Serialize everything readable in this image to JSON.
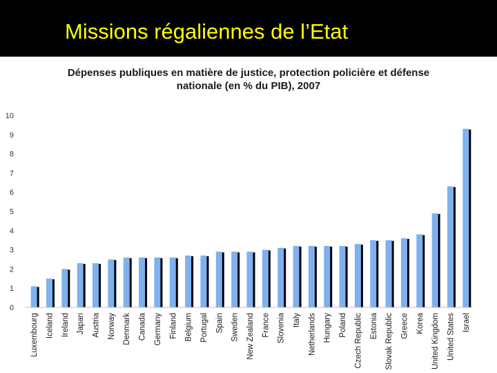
{
  "slide": {
    "title": "Missions régaliennes de l’Etat"
  },
  "colors": {
    "title_bar": "#000000",
    "title_text": "#ffff00",
    "bar_main": "#7fb1ef",
    "bar_shadow": "#000000",
    "grid": "#d9d9d9"
  },
  "chart_data": {
    "type": "bar",
    "title_line1": "Dépenses publiques en matière de justice, protection policière et défense",
    "title_line2": "nationale (en % du PIB), 2007",
    "xlabel": "",
    "ylabel": "",
    "ylim": [
      0,
      10
    ],
    "yticks": [
      0,
      1,
      2,
      3,
      4,
      5,
      6,
      7,
      8,
      9,
      10
    ],
    "grid": false,
    "categories": [
      "Luxembourg",
      "Iceland",
      "Ireland",
      "Japan",
      "Austria",
      "Norway",
      "Denmark",
      "Canada",
      "Germany",
      "Finland",
      "Belgium",
      "Portugal",
      "Spain",
      "Sweden",
      "New Zealand",
      "France",
      "Slovenia",
      "Italy",
      "Netherlands",
      "Hungary",
      "Poland",
      "Czech Republic",
      "Estonia",
      "Slovak Republic",
      "Greece",
      "Korea",
      "United Kingdom",
      "United States",
      "Israel"
    ],
    "values": [
      1.1,
      1.5,
      2.0,
      2.3,
      2.3,
      2.5,
      2.6,
      2.6,
      2.6,
      2.6,
      2.7,
      2.7,
      2.9,
      2.9,
      2.9,
      3.0,
      3.1,
      3.2,
      3.2,
      3.2,
      3.2,
      3.3,
      3.5,
      3.5,
      3.6,
      3.8,
      4.9,
      6.3,
      9.3
    ]
  }
}
